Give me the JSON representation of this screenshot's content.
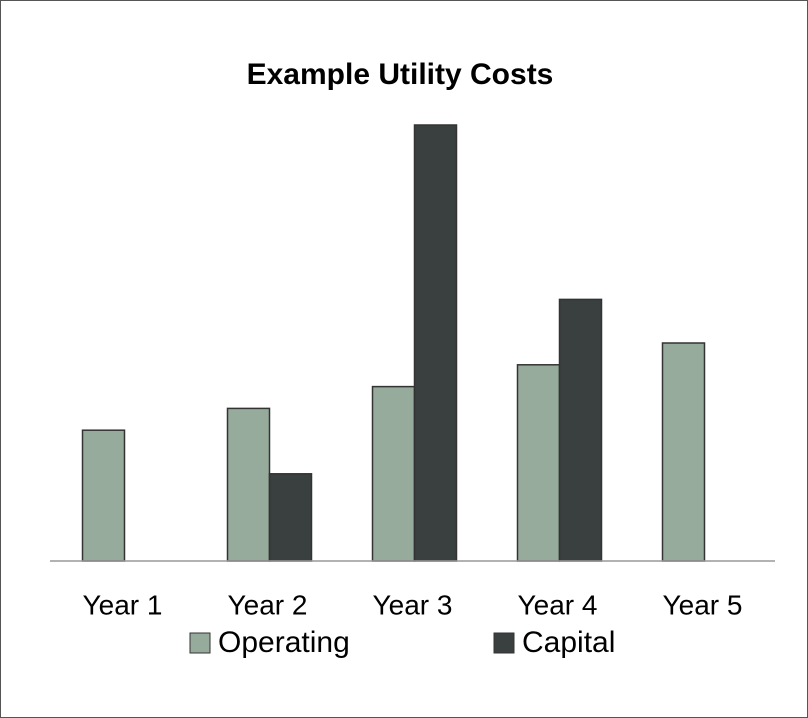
{
  "chart_data": {
    "type": "bar",
    "title": "Example Utility Costs",
    "categories": [
      "Year 1",
      "Year 2",
      "Year 3",
      "Year 4",
      "Year 5"
    ],
    "series": [
      {
        "name": "Operating",
        "color": "#97ab9c",
        "values": [
          6,
          7,
          8,
          9,
          10
        ]
      },
      {
        "name": "Capital",
        "color": "#3a3f40",
        "values": [
          null,
          4,
          20,
          12,
          null
        ]
      }
    ],
    "ylim": [
      0,
      20
    ]
  }
}
